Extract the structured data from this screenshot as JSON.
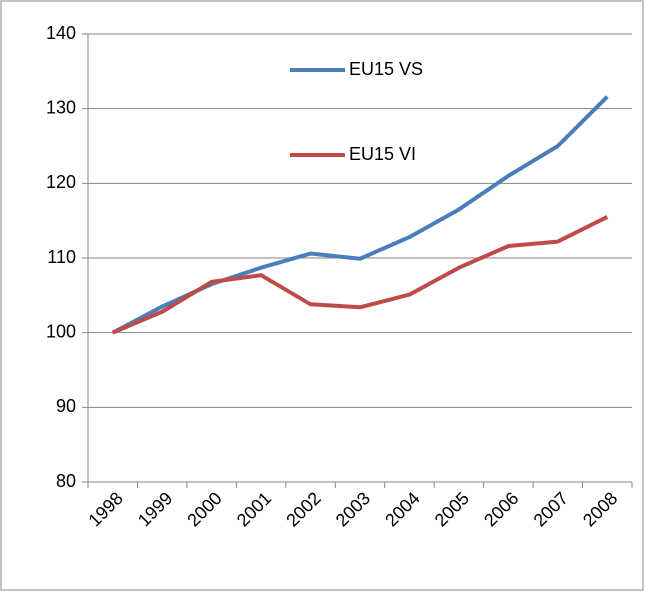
{
  "chart_data": {
    "type": "line",
    "categories": [
      "1998",
      "1999",
      "2000",
      "2001",
      "2002",
      "2003",
      "2004",
      "2005",
      "2006",
      "2007",
      "2008"
    ],
    "series": [
      {
        "name": "EU15 VS",
        "color": "#4a7ebb",
        "values": [
          100,
          103.5,
          106.5,
          108.7,
          110.6,
          109.9,
          112.8,
          116.5,
          121,
          125,
          131.6
        ]
      },
      {
        "name": "EU15 VI",
        "color": "#be4b48",
        "values": [
          100,
          102.8,
          106.8,
          107.7,
          103.8,
          103.4,
          105.1,
          108.7,
          111.6,
          112.2,
          115.5
        ]
      }
    ],
    "ylim": [
      80,
      140
    ],
    "yticks": [
      80,
      90,
      100,
      110,
      120,
      130,
      140
    ],
    "grid": true,
    "legend": "top"
  }
}
